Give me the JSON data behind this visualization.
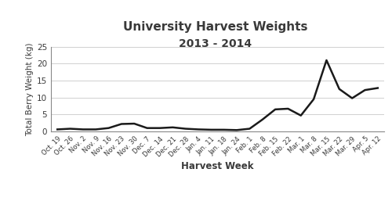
{
  "title_line1": "University Harvest Weights",
  "title_line2": "2013 - 2014",
  "xlabel": "Harvest Week",
  "ylabel": "Total Berry Weight (kg)",
  "x_labels": [
    "Oct. 19",
    "Oct. 26",
    "Nov. 2",
    "Nov. 9",
    "Nov. 16",
    "Nov. 23",
    "Nov. 30",
    "Dec. 7",
    "Dec. 14",
    "Dec. 21",
    "Dec. 28",
    "Jan. 4",
    "Jan. 11",
    "Jan. 18",
    "Jan. 24",
    "Feb. 1",
    "Feb. 8",
    "Feb. 15",
    "Feb. 22",
    "Mar. 1",
    "Mar. 8",
    "Mar. 15",
    "Mar. 22",
    "Mar. 29",
    "Apr. 5",
    "Apr. 12"
  ],
  "y_values": [
    0.6,
    0.8,
    0.6,
    0.6,
    1.0,
    2.2,
    2.3,
    1.0,
    1.0,
    1.2,
    0.8,
    0.6,
    0.5,
    0.5,
    0.4,
    0.8,
    3.5,
    6.5,
    6.7,
    4.7,
    9.5,
    21.0,
    12.5,
    9.8,
    12.2,
    12.8
  ],
  "ylim": [
    0,
    25
  ],
  "yticks": [
    0,
    5,
    10,
    15,
    20,
    25
  ],
  "line_color": "#1a1a1a",
  "line_width": 1.8,
  "bg_color": "#ffffff",
  "grid_color": "#d0d0d0",
  "title_color": "#3a3a3a",
  "tick_color": "#3a3a3a",
  "spine_color": "#888888"
}
